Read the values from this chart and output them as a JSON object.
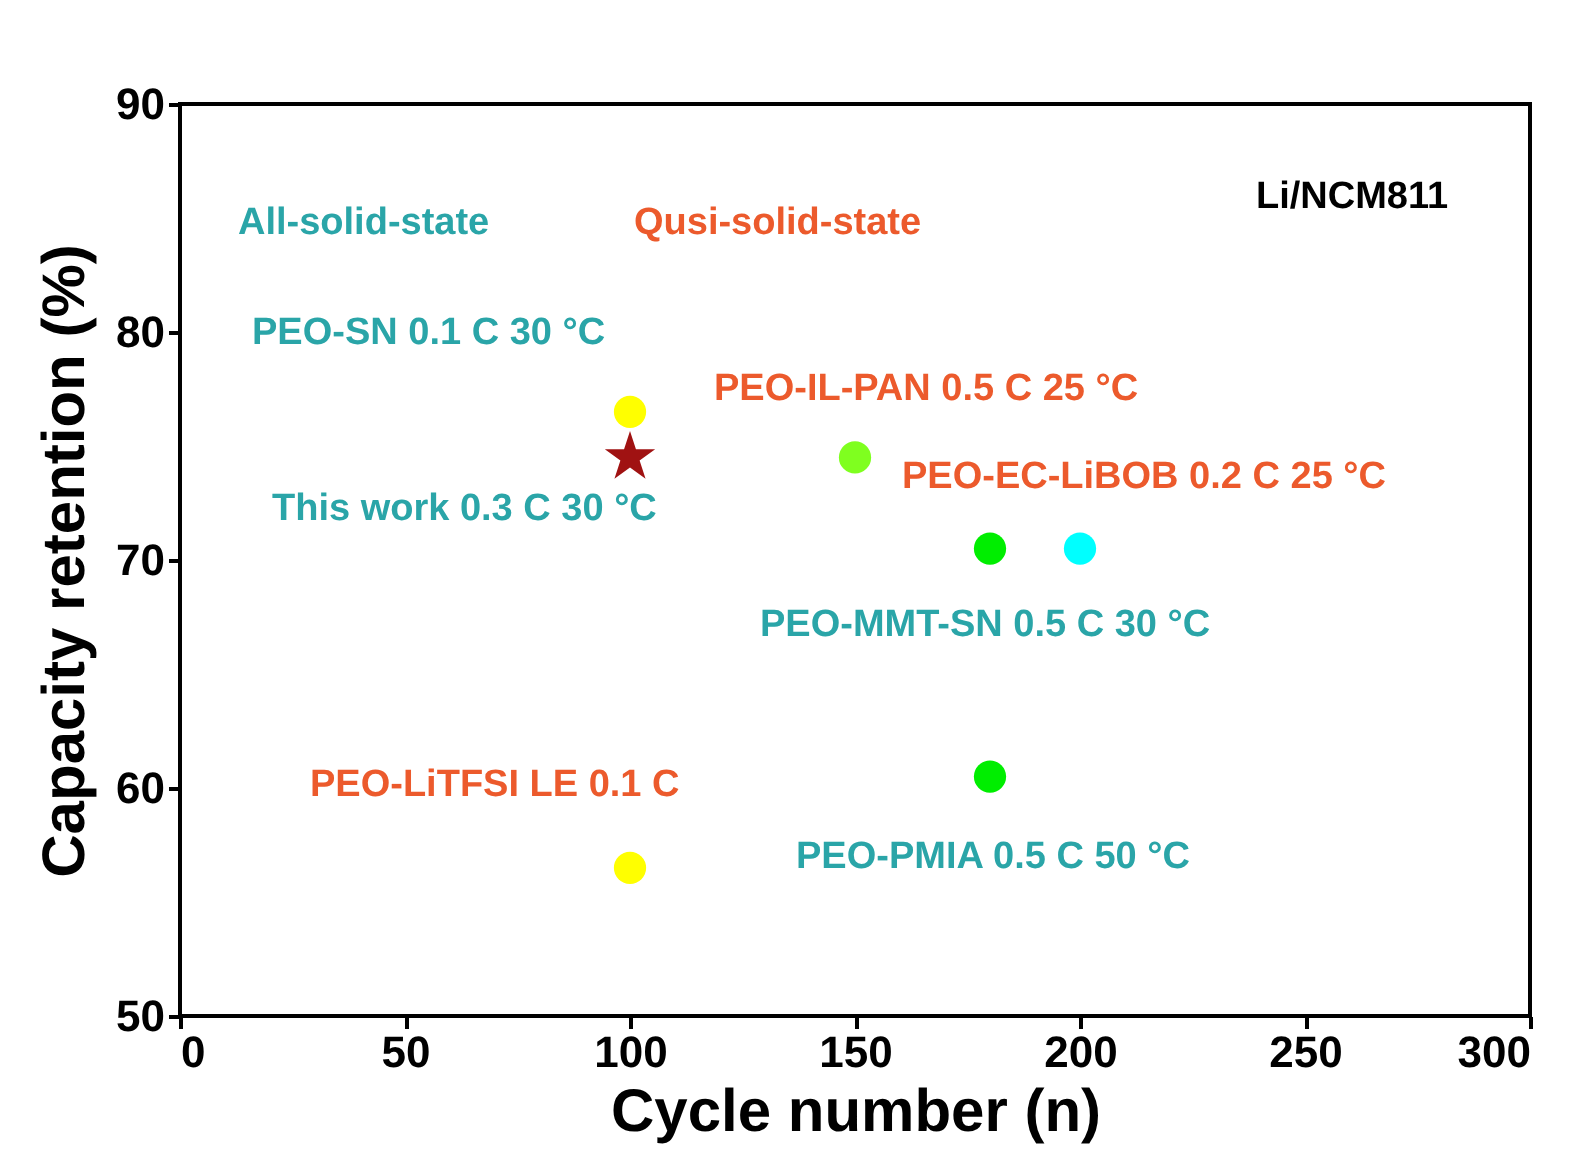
{
  "chart_data": {
    "type": "scatter",
    "xlabel": "Cycle number (n)",
    "ylabel": "Capacity retention (%)",
    "xlim": [
      0,
      300
    ],
    "xticks": [
      0,
      50,
      100,
      150,
      200,
      250,
      300
    ],
    "ylim": [
      50,
      90
    ],
    "yticks": [
      50,
      60,
      70,
      80,
      90
    ],
    "grid": false,
    "series": [
      {
        "marker": "circle",
        "x": [
          100,
          150,
          180,
          180,
          200,
          100
        ],
        "values": [
          76.5,
          74.5,
          70.5,
          60.5,
          70.5,
          56.5
        ],
        "colors": [
          "#ffff00",
          "#7fff1f",
          "#00ee00",
          "#00ee00",
          "#00ffff",
          "#ffff00"
        ]
      },
      {
        "marker": "star",
        "x": [
          100
        ],
        "values": [
          74.5
        ],
        "color": "#a01212"
      }
    ],
    "annotations": [
      "All-solid-state",
      "Qusi-solid-state",
      "Li/NCM811",
      "PEO-SN 0.1 C 30 °C",
      "PEO-IL-PAN 0.5 C 25 °C",
      "This work 0.3 C 30 °C",
      "PEO-EC-LiBOB 0.2 C 25 °C",
      "PEO-MMT-SN 0.5 C 30 °C",
      "PEO-LiTFSI LE 0.1 C",
      "PEO-PMIA 0.5 C 50 °C"
    ]
  }
}
